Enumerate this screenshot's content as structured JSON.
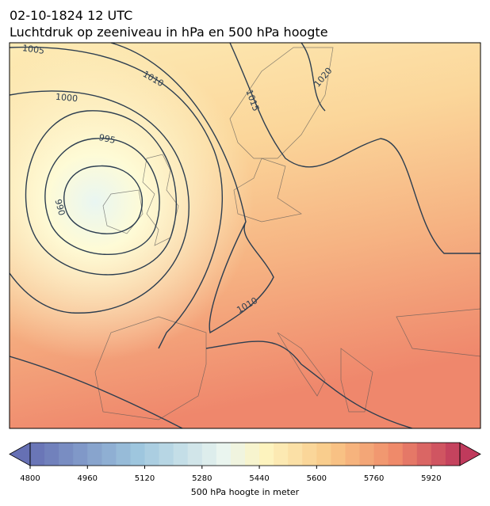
{
  "header": {
    "date": "02-10-1824 12 UTC",
    "title": "Luchtdruk op zeeniveau in hPa en 500 hPa hoogte"
  },
  "map": {
    "contour_labels": [
      "1005",
      "1010",
      "1000",
      "995",
      "990",
      "1015",
      "1020",
      "1010"
    ]
  },
  "colorbar": {
    "lim": [
      4800,
      6000
    ],
    "ticks": [
      4800,
      4960,
      5120,
      5280,
      5440,
      5600,
      5760,
      5920
    ],
    "label": "500 hPa hoogte in meter"
  }
}
